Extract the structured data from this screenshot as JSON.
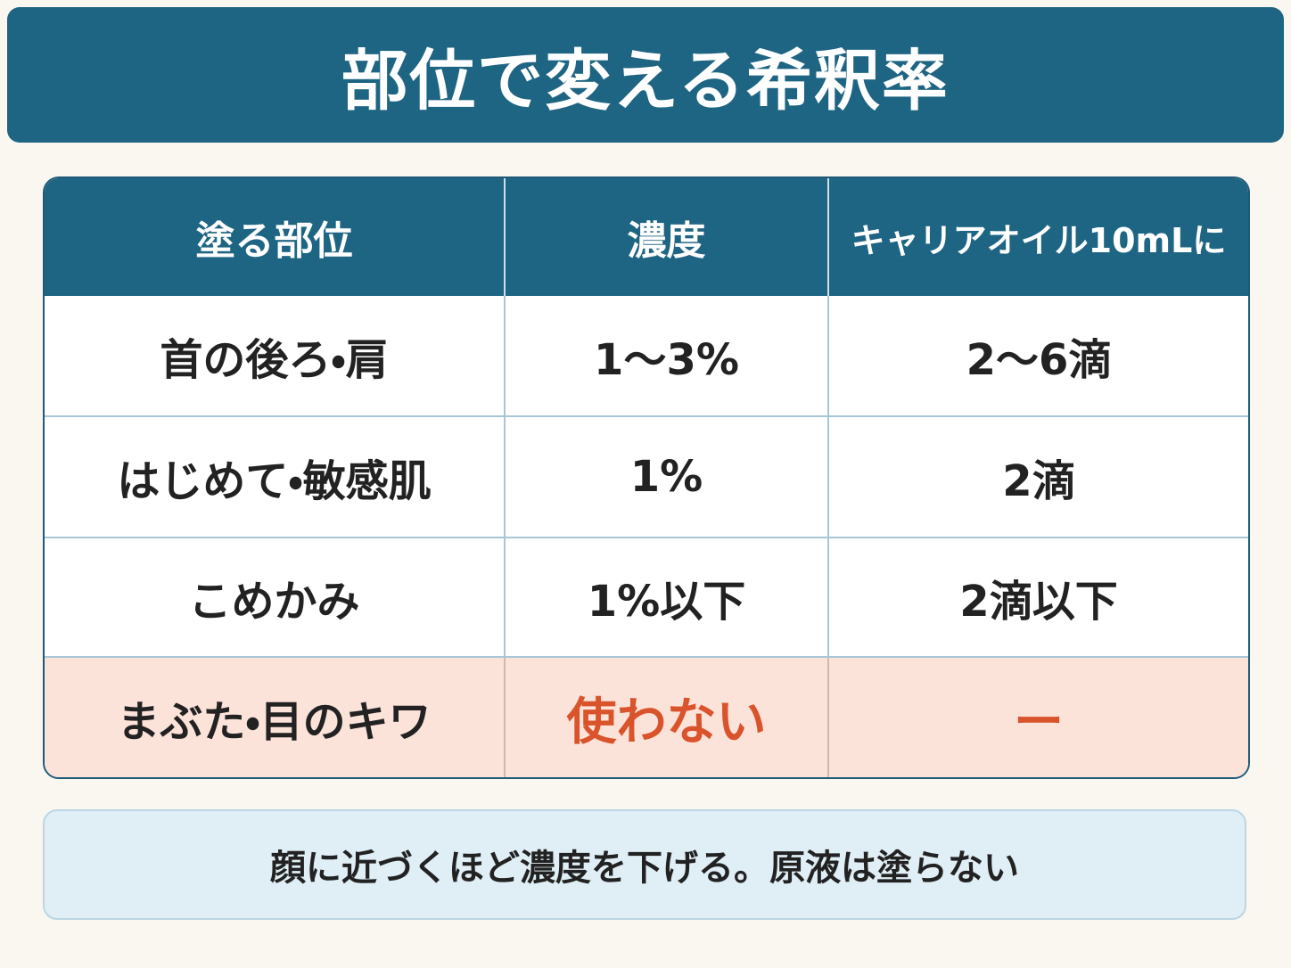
{
  "header": {
    "title": "部位で変える希釈率"
  },
  "table": {
    "headers": [
      "塗る部位",
      "濃度",
      "キャリアオイル10mLに"
    ],
    "rows": [
      [
        "首の後ろ・肩",
        "1〜3%",
        "2〜6滴"
      ],
      [
        "はじめて・敏感肌",
        "1%",
        "2滴"
      ],
      [
        "こめかみ",
        "1%以下",
        "2滴以下"
      ],
      [
        "まぶた・目のキワ",
        "使わない",
        "ー"
      ]
    ]
  },
  "note": "顔に近づくほど濃度を下げる。原液は塗らない"
}
